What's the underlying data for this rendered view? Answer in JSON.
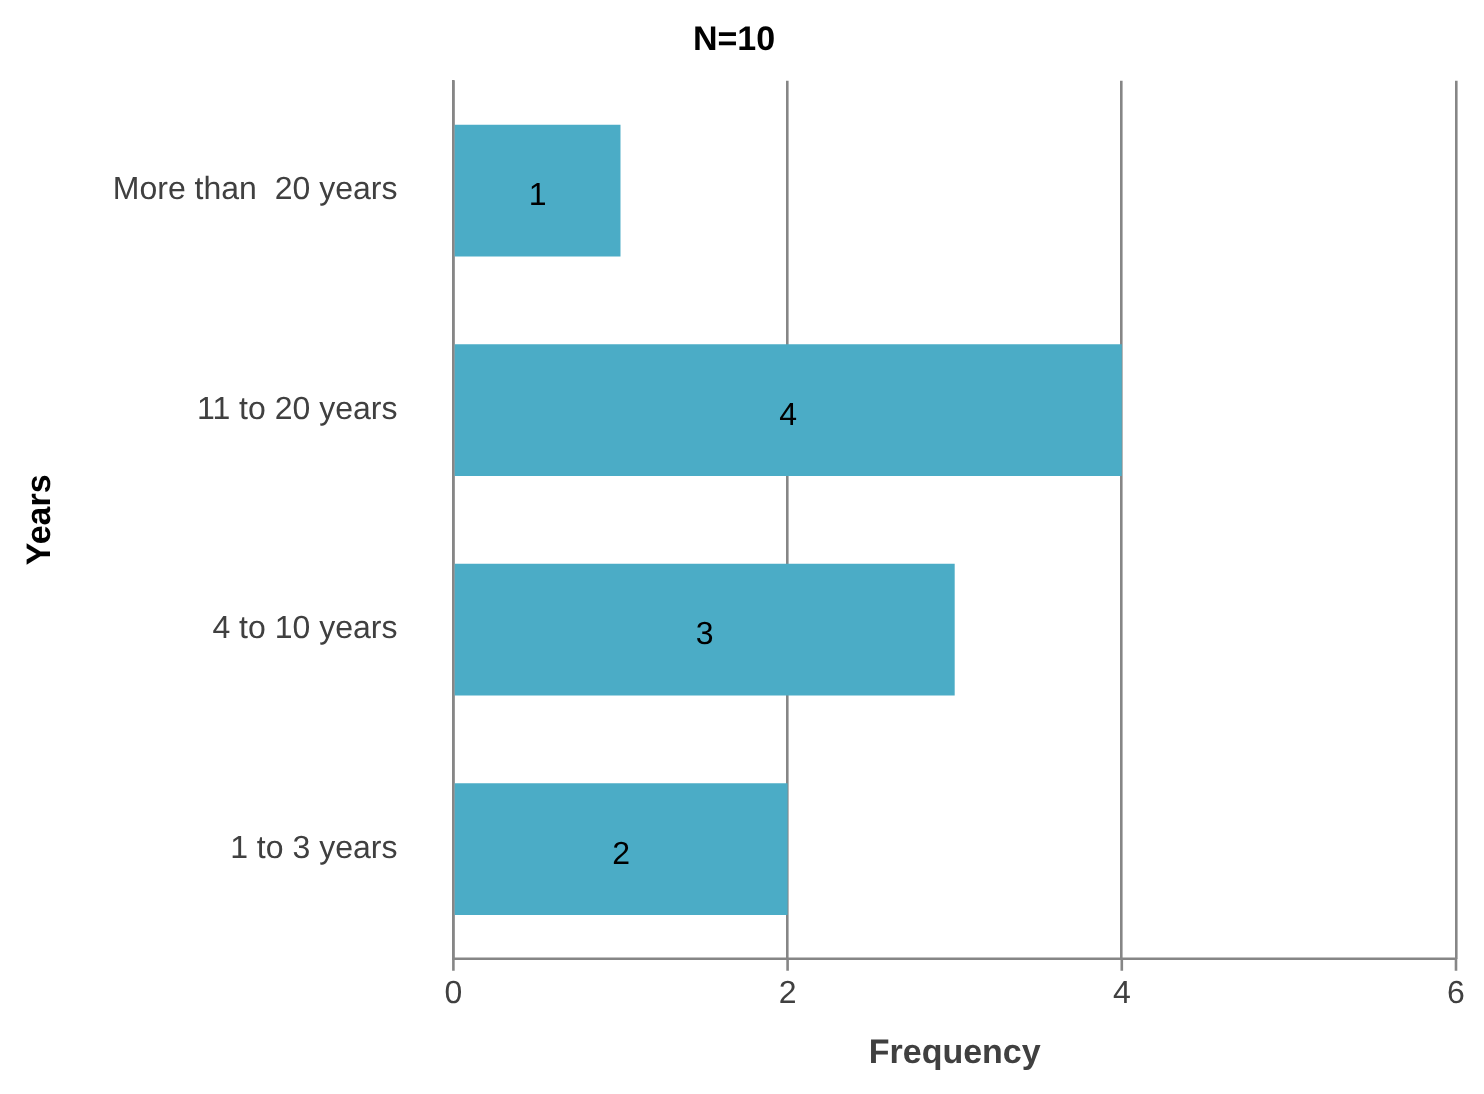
{
  "chart_data": {
    "type": "bar",
    "orientation": "horizontal",
    "title": "N=10",
    "xlabel": "Frequency",
    "ylabel": "Years",
    "categories": [
      "More than  20 years",
      "11 to 20 years",
      "4 to 10 years",
      "1 to 3 years"
    ],
    "values": [
      1,
      4,
      3,
      2
    ],
    "color": "#4bacc6",
    "xlim": [
      0,
      6
    ],
    "xticks": [
      0,
      2,
      4,
      6
    ],
    "grid": "x",
    "data_labels": true,
    "legend": false
  }
}
